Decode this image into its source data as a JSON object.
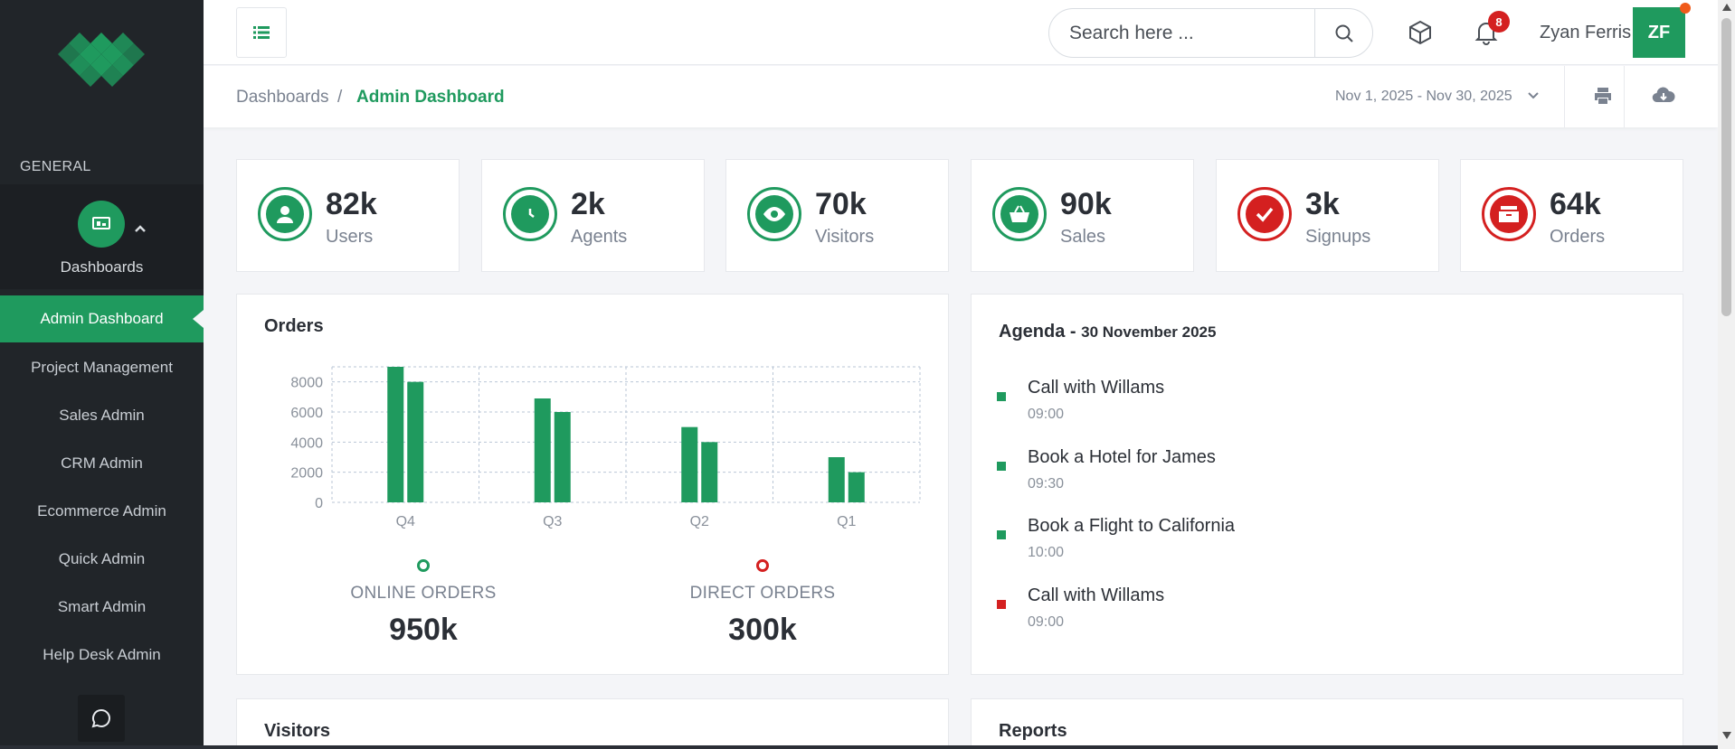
{
  "sidebar": {
    "section_label": "GENERAL",
    "dashboards_label": "Dashboards",
    "active_item": "Admin Dashboard",
    "items": [
      {
        "label": "Project Management"
      },
      {
        "label": "Sales Admin"
      },
      {
        "label": "CRM Admin"
      },
      {
        "label": "Ecommerce Admin"
      },
      {
        "label": "Quick Admin"
      },
      {
        "label": "Smart Admin"
      },
      {
        "label": "Help Desk Admin"
      }
    ]
  },
  "topbar": {
    "search_placeholder": "Search here ...",
    "notification_count": "8",
    "user_name": "Zyan Ferris",
    "avatar_initials": "ZF"
  },
  "breadcrumb": {
    "parent": "Dashboards",
    "separator": "/",
    "current": "Admin Dashboard",
    "date_range": "Nov 1, 2025 - Nov 30, 2025"
  },
  "stats": [
    {
      "value": "82k",
      "label": "Users",
      "icon": "user-icon",
      "color": "#1f9a5e"
    },
    {
      "value": "2k",
      "label": "Agents",
      "icon": "clock-icon",
      "color": "#1f9a5e"
    },
    {
      "value": "70k",
      "label": "Visitors",
      "icon": "eye-icon",
      "color": "#1f9a5e"
    },
    {
      "value": "90k",
      "label": "Sales",
      "icon": "basket-icon",
      "color": "#1f9a5e"
    },
    {
      "value": "3k",
      "label": "Signups",
      "icon": "check-icon",
      "color": "#d42020"
    },
    {
      "value": "64k",
      "label": "Orders",
      "icon": "inbox-icon",
      "color": "#d42020"
    }
  ],
  "orders_panel": {
    "title": "Orders",
    "online_label": "ONLINE ORDERS",
    "online_value": "950k",
    "direct_label": "DIRECT ORDERS",
    "direct_value": "300k"
  },
  "chart_data": {
    "type": "bar",
    "categories": [
      "Q4",
      "Q3",
      "Q2",
      "Q1"
    ],
    "series": [
      {
        "values": [
          9000,
          6900,
          5000,
          3000
        ]
      },
      {
        "values": [
          8000,
          6000,
          4000,
          2000
        ]
      }
    ],
    "yticks": [
      "8000",
      "6000",
      "4000",
      "2000",
      "0"
    ],
    "ylim": [
      0,
      9000
    ],
    "grid": true,
    "colors": [
      "#1f9a5e",
      "#1f9a5e"
    ]
  },
  "agenda": {
    "title": "Agenda",
    "dash": "-",
    "date": "30 November 2025",
    "items": [
      {
        "title": "Call with Willams",
        "time": "09:00",
        "color": "#1f9a5e"
      },
      {
        "title": "Book a Hotel for James",
        "time": "09:30",
        "color": "#1f9a5e"
      },
      {
        "title": "Book a Flight to California",
        "time": "10:00",
        "color": "#1f9a5e"
      },
      {
        "title": "Call with Willams",
        "time": "09:00",
        "color": "#d42020"
      }
    ]
  },
  "visitors_panel": {
    "title": "Visitors"
  },
  "reports_panel": {
    "title": "Reports"
  }
}
